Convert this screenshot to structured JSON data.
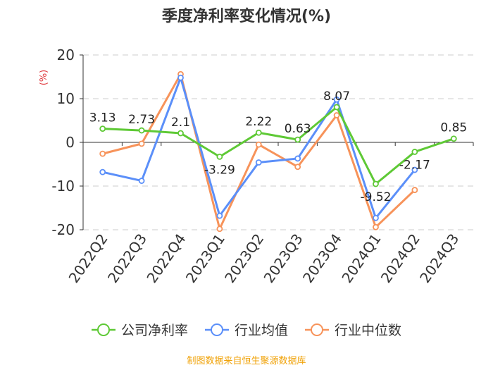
{
  "chart_data": {
    "type": "line",
    "title": "季度净利率变化情况(%)",
    "ylabel": "(%)",
    "xlabel": "",
    "categories": [
      "2022Q2",
      "2022Q3",
      "2022Q4",
      "2023Q1",
      "2023Q2",
      "2023Q3",
      "2023Q4",
      "2024Q1",
      "2024Q2",
      "2024Q3"
    ],
    "ylim": [
      -20,
      20
    ],
    "yticks": [
      20,
      10,
      0,
      -10,
      -20
    ],
    "grid": true,
    "legend_position": "bottom",
    "series": [
      {
        "name": "公司净利率",
        "color": "#5ec935",
        "values": [
          3.13,
          2.73,
          2.1,
          -3.29,
          2.22,
          0.63,
          8.07,
          -9.52,
          -2.17,
          0.85
        ],
        "labels": [
          "3.13",
          "2.73",
          "2.1",
          "-3.29",
          "2.22",
          "0.63",
          "8.07",
          "-9.52",
          "-2.17",
          "0.85"
        ]
      },
      {
        "name": "行业均值",
        "color": "#5b8ff9",
        "values": [
          -6.8,
          -8.8,
          14.8,
          -16.8,
          -4.6,
          -3.7,
          9.8,
          -17.3,
          -6.3,
          null
        ]
      },
      {
        "name": "行业中位数",
        "color": "#f7935a",
        "values": [
          -2.6,
          -0.3,
          15.6,
          -19.8,
          -0.5,
          -5.6,
          6.2,
          -19.4,
          -10.9,
          null
        ]
      }
    ]
  },
  "footer": {
    "source": "制图数据来自恒生聚源数据库"
  }
}
